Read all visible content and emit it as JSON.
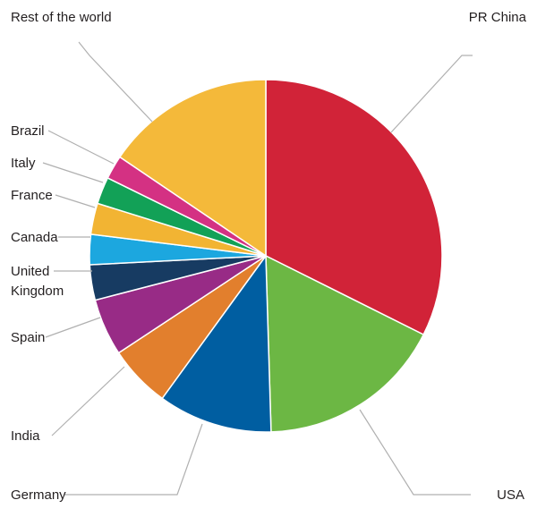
{
  "chart_data": {
    "type": "pie",
    "start_angle_deg": 0,
    "direction": "clockwise",
    "slices": [
      {
        "label": "PR China",
        "value": 34.0,
        "color": "#d12338"
      },
      {
        "label": "USA",
        "value": 18.0,
        "color": "#6cb744"
      },
      {
        "label": "Germany",
        "value": 11.0,
        "color": "#005ea1"
      },
      {
        "label": "India",
        "value": 6.0,
        "color": "#e27f2d"
      },
      {
        "label": "Spain",
        "value": 5.5,
        "color": "#982b86"
      },
      {
        "label": "United Kingdom",
        "value": 3.4,
        "color": "#173b62"
      },
      {
        "label": "Canada",
        "value": 2.9,
        "color": "#1ca7df"
      },
      {
        "label": "France",
        "value": 3.0,
        "color": "#f2b433"
      },
      {
        "label": "Italy",
        "value": 2.6,
        "color": "#12a157"
      },
      {
        "label": "Brazil",
        "value": 2.3,
        "color": "#d43183"
      },
      {
        "label": "Rest of the world",
        "value": 16.3,
        "color": "#f4b93a"
      }
    ]
  }
}
